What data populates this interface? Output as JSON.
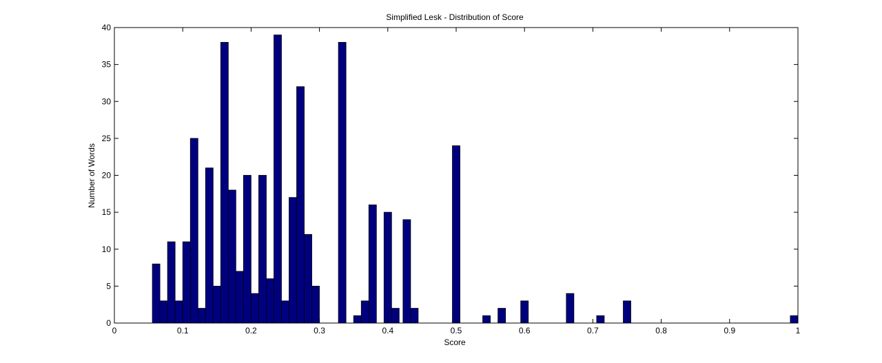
{
  "chart_data": {
    "type": "bar",
    "title": "Simplified Lesk - Distribution of Score",
    "xlabel": "Score",
    "ylabel": "Number of Words",
    "xlim": [
      0,
      1
    ],
    "ylim": [
      0,
      40
    ],
    "xticks": [
      "0",
      "0.1",
      "0.2",
      "0.3",
      "0.4",
      "0.5",
      "0.6",
      "0.7",
      "0.8",
      "0.9",
      "1"
    ],
    "yticks": [
      "0",
      "5",
      "10",
      "15",
      "20",
      "25",
      "30",
      "35",
      "40"
    ],
    "grid": false,
    "bin_width": 0.0111,
    "x": [
      0.0611,
      0.0722,
      0.0833,
      0.0944,
      0.1056,
      0.1167,
      0.1278,
      0.1389,
      0.15,
      0.1611,
      0.1722,
      0.1833,
      0.1944,
      0.2056,
      0.2167,
      0.2278,
      0.2389,
      0.25,
      0.2611,
      0.2722,
      0.2833,
      0.2944,
      0.3056,
      0.3333,
      0.3556,
      0.3667,
      0.3778,
      0.4,
      0.4111,
      0.4278,
      0.4389,
      0.5,
      0.5444,
      0.5667,
      0.6,
      0.6667,
      0.7111,
      0.75,
      0.9944
    ],
    "values": [
      8,
      3,
      11,
      3,
      11,
      25,
      2,
      21,
      5,
      38,
      18,
      7,
      20,
      4,
      20,
      6,
      39,
      3,
      17,
      32,
      12,
      5,
      0,
      38,
      1,
      3,
      16,
      15,
      2,
      14,
      2,
      24,
      1,
      2,
      3,
      4,
      1,
      3,
      1
    ],
    "bar_color": "#00007f",
    "edge_color": "#000000"
  }
}
